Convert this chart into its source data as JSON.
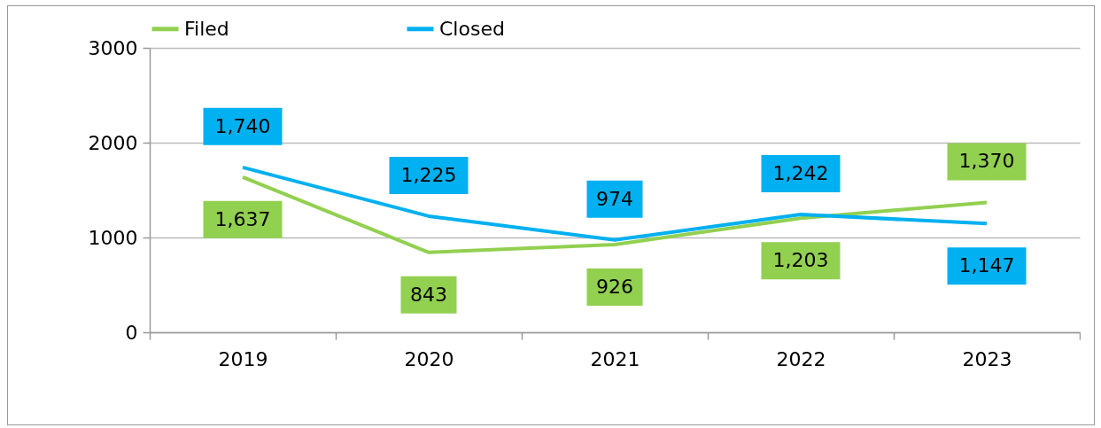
{
  "chart_data": {
    "type": "line",
    "categories": [
      "2019",
      "2020",
      "2021",
      "2022",
      "2023"
    ],
    "series": [
      {
        "name": "Filed",
        "color": "#92d050",
        "values": [
          1637,
          843,
          926,
          1203,
          1370
        ],
        "value_labels": [
          "1,637",
          "843",
          "926",
          "1,203",
          "1,370"
        ]
      },
      {
        "name": "Closed",
        "color": "#00b0f0",
        "values": [
          1740,
          1225,
          974,
          1242,
          1147
        ],
        "value_labels": [
          "1,740",
          "1,225",
          "974",
          "1,242",
          "1,147"
        ]
      }
    ],
    "ylim": [
      0,
      3000
    ],
    "yticks": [
      0,
      1000,
      2000,
      3000
    ],
    "grid": "y",
    "legend": "top"
  }
}
